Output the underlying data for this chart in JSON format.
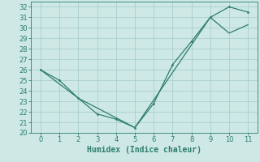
{
  "title": "",
  "xlabel": "Humidex (Indice chaleur)",
  "xlim": [
    -0.5,
    11.5
  ],
  "ylim": [
    20,
    32.5
  ],
  "yticks": [
    20,
    21,
    22,
    23,
    24,
    25,
    26,
    27,
    28,
    29,
    30,
    31,
    32
  ],
  "xticks": [
    0,
    1,
    2,
    3,
    4,
    5,
    6,
    7,
    8,
    9,
    10,
    11
  ],
  "line1_x": [
    0,
    1,
    2,
    3,
    4,
    5,
    6,
    7,
    8,
    9,
    10,
    11
  ],
  "line1_y": [
    26.0,
    25.0,
    23.3,
    21.8,
    21.3,
    20.5,
    22.8,
    26.5,
    28.7,
    31.0,
    32.0,
    31.5
  ],
  "line2_x": [
    0,
    2,
    5,
    9,
    10,
    11
  ],
  "line2_y": [
    26.0,
    23.3,
    20.5,
    31.0,
    29.5,
    30.3
  ],
  "line_color": "#2e7d6e",
  "bg_color": "#cde8e5",
  "grid_color": "#aacfcc",
  "tick_label_fontsize": 6,
  "xlabel_fontsize": 7
}
